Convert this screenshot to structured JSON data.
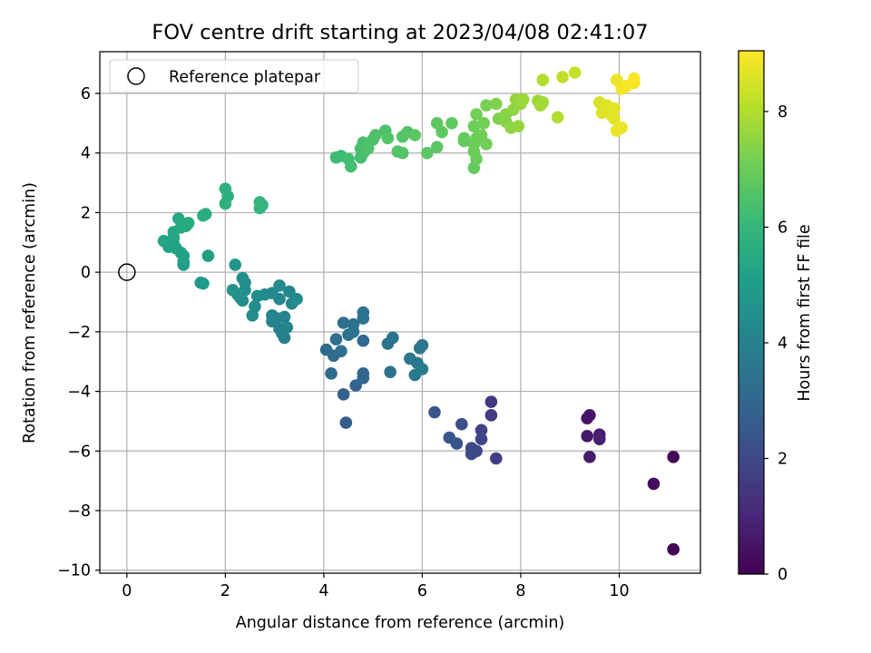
{
  "chart_data": {
    "type": "scatter",
    "title": "FOV centre drift starting at 2023/04/08 02:41:07",
    "xlabel": "Angular distance from reference (arcmin)",
    "ylabel": "Rotation from reference (arcmin)",
    "xlim": [
      -0.55,
      11.65
    ],
    "ylim": [
      -10.1,
      7.4
    ],
    "xticks": [
      0,
      2,
      4,
      6,
      8,
      10
    ],
    "yticks": [
      -10,
      -8,
      -6,
      -4,
      -2,
      0,
      2,
      4,
      6
    ],
    "xtick_labels": [
      "0",
      "2",
      "4",
      "6",
      "8",
      "10"
    ],
    "ytick_labels": [
      "−10",
      "−8",
      "−6",
      "−4",
      "−2",
      "0",
      "2",
      "4",
      "6"
    ],
    "grid": true,
    "legend": {
      "position": "top-left",
      "entries": [
        "Reference platepar"
      ]
    },
    "reference_point": {
      "x": 0,
      "y": 0
    },
    "colorbar": {
      "label": "Hours from first FF file",
      "colormap": "viridis",
      "range": [
        0,
        9.05
      ],
      "ticks": [
        0,
        2,
        4,
        6,
        8
      ],
      "tick_labels": [
        "0",
        "2",
        "4",
        "6",
        "8"
      ]
    },
    "points": [
      [
        11.1,
        -9.3,
        0.1
      ],
      [
        10.7,
        -7.1,
        0.3
      ],
      [
        11.1,
        -6.2,
        0.2
      ],
      [
        9.4,
        -4.8,
        0.6
      ],
      [
        9.35,
        -4.9,
        0.5
      ],
      [
        9.35,
        -5.5,
        0.6
      ],
      [
        9.4,
        -6.2,
        0.7
      ],
      [
        9.6,
        -5.45,
        0.7
      ],
      [
        9.6,
        -5.6,
        0.8
      ],
      [
        7.4,
        -4.35,
        1.5
      ],
      [
        7.4,
        -4.8,
        1.6
      ],
      [
        7.5,
        -6.25,
        1.7
      ],
      [
        7.2,
        -5.3,
        1.8
      ],
      [
        7.2,
        -5.6,
        1.9
      ],
      [
        7.1,
        -6.0,
        2.0
      ],
      [
        7.0,
        -5.9,
        2.0
      ],
      [
        7.0,
        -6.1,
        2.1
      ],
      [
        6.8,
        -5.1,
        2.2
      ],
      [
        6.7,
        -5.75,
        2.3
      ],
      [
        6.55,
        -5.55,
        2.4
      ],
      [
        6.25,
        -4.7,
        2.5
      ],
      [
        4.45,
        -5.05,
        2.7
      ],
      [
        4.4,
        -4.1,
        2.8
      ],
      [
        4.65,
        -3.8,
        2.9
      ],
      [
        4.8,
        -3.55,
        3.0
      ],
      [
        4.8,
        -3.4,
        3.0
      ],
      [
        4.8,
        -2.3,
        3.1
      ],
      [
        4.15,
        -3.4,
        3.2
      ],
      [
        4.2,
        -2.8,
        3.2
      ],
      [
        4.05,
        -2.6,
        3.2
      ],
      [
        4.35,
        -2.65,
        3.3
      ],
      [
        4.25,
        -2.25,
        3.3
      ],
      [
        4.4,
        -1.7,
        3.3
      ],
      [
        4.5,
        -2.1,
        3.4
      ],
      [
        4.6,
        -1.75,
        3.4
      ],
      [
        4.6,
        -2.0,
        3.4
      ],
      [
        4.8,
        -1.55,
        3.4
      ],
      [
        4.8,
        -1.35,
        3.5
      ],
      [
        5.3,
        -2.4,
        3.5
      ],
      [
        5.4,
        -2.2,
        3.5
      ],
      [
        5.35,
        -3.35,
        3.5
      ],
      [
        5.75,
        -2.9,
        3.6
      ],
      [
        5.85,
        -3.45,
        3.6
      ],
      [
        5.9,
        -3.05,
        3.6
      ],
      [
        5.95,
        -2.55,
        3.6
      ],
      [
        6.0,
        -2.45,
        3.6
      ],
      [
        6.0,
        -3.25,
        3.7
      ],
      [
        3.2,
        -2.2,
        3.9
      ],
      [
        3.15,
        -2.05,
        4.0
      ],
      [
        3.1,
        -1.9,
        4.0
      ],
      [
        3.05,
        -1.55,
        4.0
      ],
      [
        3.2,
        -1.5,
        4.1
      ],
      [
        3.25,
        -1.85,
        4.1
      ],
      [
        2.95,
        -1.45,
        4.1
      ],
      [
        2.95,
        -1.65,
        4.1
      ],
      [
        3.1,
        -0.9,
        4.2
      ],
      [
        3.3,
        -0.65,
        4.2
      ],
      [
        3.35,
        -1.05,
        4.2
      ],
      [
        3.45,
        -0.9,
        4.3
      ],
      [
        3.1,
        -0.45,
        4.3
      ],
      [
        2.95,
        -0.7,
        4.3
      ],
      [
        2.8,
        -0.75,
        4.3
      ],
      [
        2.65,
        -0.8,
        4.4
      ],
      [
        2.55,
        -1.45,
        4.4
      ],
      [
        2.6,
        -1.15,
        4.4
      ],
      [
        2.35,
        -0.95,
        4.4
      ],
      [
        2.3,
        -0.85,
        4.5
      ],
      [
        2.4,
        -0.6,
        4.5
      ],
      [
        2.35,
        -0.2,
        4.5
      ],
      [
        2.4,
        -0.35,
        4.5
      ],
      [
        2.25,
        -0.75,
        4.6
      ],
      [
        2.15,
        -0.6,
        4.6
      ],
      [
        2.2,
        0.25,
        4.7
      ],
      [
        1.5,
        -0.35,
        4.9
      ],
      [
        1.55,
        -0.38,
        4.9
      ],
      [
        1.65,
        0.55,
        5.0
      ],
      [
        1.15,
        0.25,
        5.0
      ],
      [
        1.15,
        0.35,
        5.1
      ],
      [
        1.15,
        0.55,
        5.1
      ],
      [
        1.1,
        0.65,
        5.1
      ],
      [
        1.0,
        0.8,
        5.2
      ],
      [
        0.95,
        0.95,
        5.2
      ],
      [
        0.85,
        0.85,
        5.2
      ],
      [
        0.8,
        1.0,
        5.3
      ],
      [
        0.75,
        1.05,
        5.3
      ],
      [
        0.95,
        1.15,
        5.3
      ],
      [
        0.95,
        1.35,
        5.4
      ],
      [
        1.1,
        1.5,
        5.4
      ],
      [
        1.05,
        1.8,
        5.4
      ],
      [
        1.2,
        1.55,
        5.5
      ],
      [
        1.25,
        1.65,
        5.5
      ],
      [
        1.55,
        1.9,
        5.6
      ],
      [
        1.6,
        1.95,
        5.6
      ],
      [
        2.0,
        2.3,
        5.7
      ],
      [
        2.05,
        2.55,
        5.7
      ],
      [
        2.0,
        2.8,
        5.8
      ],
      [
        2.7,
        2.15,
        5.9
      ],
      [
        2.75,
        2.25,
        5.9
      ],
      [
        2.7,
        2.35,
        6.0
      ],
      [
        4.25,
        3.85,
        6.2
      ],
      [
        4.35,
        3.9,
        6.2
      ],
      [
        4.5,
        3.8,
        6.3
      ],
      [
        4.55,
        3.55,
        6.3
      ],
      [
        4.75,
        3.85,
        6.3
      ],
      [
        4.8,
        4.0,
        6.4
      ],
      [
        4.85,
        4.25,
        6.4
      ],
      [
        4.75,
        4.15,
        6.4
      ],
      [
        4.8,
        4.35,
        6.4
      ],
      [
        4.9,
        4.15,
        6.5
      ],
      [
        5.0,
        4.45,
        6.5
      ],
      [
        5.05,
        4.6,
        6.5
      ],
      [
        5.25,
        4.75,
        6.5
      ],
      [
        5.3,
        4.5,
        6.6
      ],
      [
        5.5,
        4.05,
        6.6
      ],
      [
        5.6,
        4.0,
        6.6
      ],
      [
        5.6,
        4.55,
        6.6
      ],
      [
        5.7,
        4.7,
        6.6
      ],
      [
        5.85,
        4.6,
        6.7
      ],
      [
        6.1,
        4.0,
        6.7
      ],
      [
        6.3,
        4.2,
        6.7
      ],
      [
        6.3,
        5.0,
        6.8
      ],
      [
        6.4,
        4.7,
        6.8
      ],
      [
        6.6,
        5.0,
        6.8
      ],
      [
        6.85,
        4.5,
        6.9
      ],
      [
        6.85,
        4.4,
        6.9
      ],
      [
        7.05,
        3.5,
        6.9
      ],
      [
        7.1,
        3.8,
        7.0
      ],
      [
        7.05,
        4.05,
        7.0
      ],
      [
        7.05,
        4.3,
        7.0
      ],
      [
        7.1,
        4.5,
        7.0
      ],
      [
        7.05,
        4.9,
        7.0
      ],
      [
        7.1,
        5.3,
        7.1
      ],
      [
        7.3,
        4.3,
        7.1
      ],
      [
        7.2,
        4.6,
        7.1
      ],
      [
        7.25,
        5.0,
        7.1
      ],
      [
        7.3,
        5.6,
        7.2
      ],
      [
        7.5,
        5.65,
        7.3
      ],
      [
        7.55,
        5.15,
        7.3
      ],
      [
        7.7,
        5.3,
        7.4
      ],
      [
        7.7,
        5.05,
        7.4
      ],
      [
        7.8,
        4.85,
        7.5
      ],
      [
        7.85,
        5.45,
        7.5
      ],
      [
        7.9,
        5.8,
        7.6
      ],
      [
        7.95,
        4.9,
        7.6
      ],
      [
        8.0,
        5.65,
        7.6
      ],
      [
        8.05,
        5.8,
        7.7
      ],
      [
        8.35,
        5.75,
        7.7
      ],
      [
        8.4,
        5.6,
        7.8
      ],
      [
        8.45,
        5.7,
        7.8
      ],
      [
        8.45,
        6.45,
        8.0
      ],
      [
        8.75,
        5.2,
        8.0
      ],
      [
        8.85,
        6.55,
        8.2
      ],
      [
        9.1,
        6.7,
        8.3
      ],
      [
        9.6,
        5.7,
        8.5
      ],
      [
        9.65,
        5.35,
        8.6
      ],
      [
        9.75,
        5.6,
        8.6
      ],
      [
        9.8,
        5.4,
        8.6
      ],
      [
        9.85,
        5.25,
        8.7
      ],
      [
        9.9,
        5.15,
        8.7
      ],
      [
        9.9,
        5.5,
        8.7
      ],
      [
        9.95,
        4.75,
        8.8
      ],
      [
        10.05,
        4.85,
        8.8
      ],
      [
        9.95,
        6.45,
        8.8
      ],
      [
        10.05,
        6.15,
        8.9
      ],
      [
        10.15,
        6.25,
        8.9
      ],
      [
        10.3,
        6.35,
        9.0
      ],
      [
        10.3,
        6.5,
        9.0
      ]
    ]
  }
}
